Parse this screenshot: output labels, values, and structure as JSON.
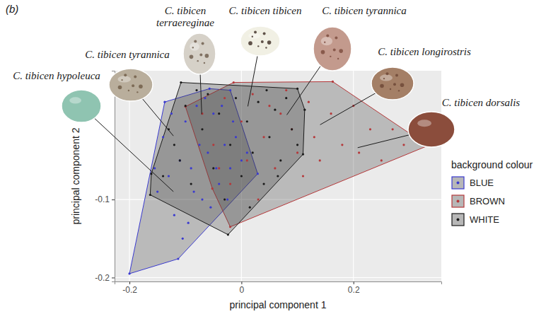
{
  "chart_data": {
    "type": "scatter",
    "label": "(b)",
    "x_label": "principal component 1",
    "y_label": "principal component 2",
    "xlim": [
      -0.2266,
      0.357
    ],
    "ylim": [
      -0.205,
      0.065
    ],
    "xticks": [
      -0.2,
      0,
      0.2
    ],
    "yticks": [
      -0.2,
      -0.1
    ],
    "grid": true,
    "legend": "right",
    "legend_title": "background colour",
    "marker": "circle",
    "series": [
      {
        "name": "BLUE",
        "color": "#3a3acf",
        "x": [
          -0.2,
          -0.113,
          0.029,
          -0.02,
          -0.057,
          -0.137,
          -0.15,
          -0.14,
          -0.12,
          -0.1,
          -0.09,
          -0.08,
          -0.07,
          -0.06,
          -0.05,
          -0.04,
          -0.03,
          -0.02,
          -0.01,
          0.0,
          0.01,
          -0.11,
          -0.095,
          -0.075,
          -0.055,
          -0.035,
          -0.015,
          -0.125,
          -0.085,
          -0.065,
          -0.045,
          -0.025,
          -0.155,
          -0.13,
          -0.105
        ],
        "values": [
          -0.195,
          -0.176,
          -0.067,
          0.04,
          0.042,
          0.025,
          -0.09,
          -0.02,
          -0.12,
          0.0,
          -0.06,
          0.02,
          -0.1,
          -0.04,
          0.01,
          -0.08,
          -0.03,
          -0.06,
          -0.02,
          -0.05,
          -0.04,
          -0.05,
          -0.13,
          -0.03,
          -0.11,
          0.02,
          0.0,
          0.01,
          -0.09,
          0.03,
          -0.06,
          -0.1,
          -0.06,
          -0.07,
          -0.15
        ]
      },
      {
        "name": "BROWN",
        "color": "#b5383a",
        "x": [
          -0.1,
          -0.014,
          0.163,
          0.333,
          -0.02,
          -0.052,
          -0.07,
          -0.05,
          -0.03,
          -0.02,
          0.0,
          0.01,
          0.02,
          0.03,
          0.04,
          0.05,
          0.06,
          0.08,
          0.09,
          0.1,
          0.12,
          0.13,
          0.14,
          0.16,
          0.18,
          0.2,
          0.21,
          0.23,
          0.25,
          0.27,
          0.29,
          0.07,
          -0.04,
          0.11
        ],
        "values": [
          0.019,
          0.05,
          0.051,
          -0.031,
          -0.135,
          -0.086,
          0.01,
          -0.03,
          0.03,
          -0.08,
          0.0,
          -0.05,
          0.035,
          -0.1,
          -0.02,
          0.02,
          -0.06,
          0.04,
          -0.01,
          -0.04,
          0.025,
          -0.02,
          -0.05,
          0.01,
          -0.03,
          0.02,
          -0.04,
          -0.01,
          -0.05,
          -0.01,
          -0.03,
          0.01,
          -0.06,
          -0.07
        ]
      },
      {
        "name": "WHITE",
        "color": "#1a1a1a",
        "x": [
          -0.108,
          0.1,
          0.113,
          0.11,
          -0.024,
          -0.163,
          -0.161,
          -0.14,
          -0.12,
          -0.1,
          -0.09,
          -0.07,
          -0.06,
          -0.05,
          -0.04,
          -0.03,
          -0.02,
          -0.01,
          0.0,
          0.01,
          0.02,
          0.03,
          0.04,
          0.05,
          0.06,
          0.07,
          0.08,
          0.09,
          0.1,
          -0.11,
          -0.08,
          0.015,
          0.045,
          -0.13,
          0.065
        ],
        "values": [
          0.05,
          0.042,
          0.015,
          -0.042,
          -0.145,
          -0.094,
          -0.067,
          -0.07,
          -0.03,
          0.02,
          -0.08,
          -0.01,
          0.035,
          -0.06,
          0.01,
          -0.1,
          -0.03,
          0.03,
          -0.07,
          0.0,
          -0.04,
          0.025,
          -0.08,
          -0.02,
          0.015,
          -0.05,
          0.03,
          -0.01,
          -0.03,
          -0.05,
          0.04,
          -0.11,
          0.04,
          -0.01,
          -0.07
        ]
      }
    ],
    "annotations": [
      {
        "text": "C. tibicen hypoleuca",
        "x": -0.1215,
        "y": -0.0899
      },
      {
        "text": "C. tibicen tyrannica",
        "x": -0.1215,
        "y": -0.0185
      },
      {
        "text": "C. tibicen terraereginae",
        "x": -0.0709,
        "y": 0.0092
      },
      {
        "text": "C. tibicen tibicen",
        "x": 0.0114,
        "y": 0.0193
      },
      {
        "text": "C. tibicen tyrannica",
        "x": 0.081,
        "y": 0.0084
      },
      {
        "text": "C. tibicen longirostris",
        "x": 0.1405,
        "y": -0.0042
      },
      {
        "text": "C. tibicen dorsalis",
        "x": 0.2076,
        "y": -0.0336
      }
    ]
  }
}
